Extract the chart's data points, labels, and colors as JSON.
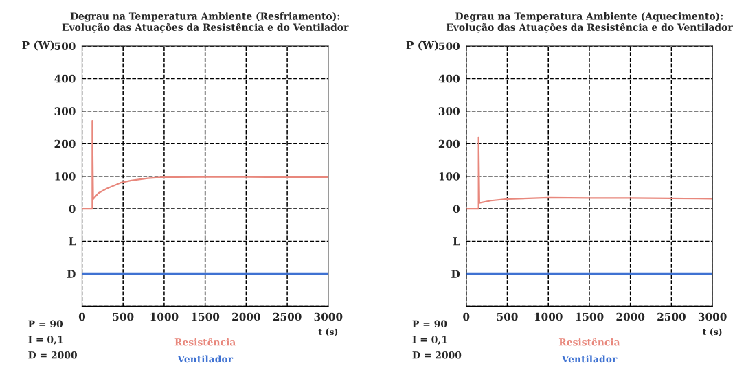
{
  "chart_data": [
    {
      "type": "line",
      "title": "Degrau na Temperatura Ambiente (Resfriamento):\nEvolução das Atuações da Resistência e do Ventilador",
      "xlabel": "t (s)",
      "ylabel": "P (W)",
      "xlim": [
        0,
        3000
      ],
      "xticks": [
        0,
        500,
        1000,
        1500,
        2000,
        2500,
        3000
      ],
      "ylim": [
        -300,
        500
      ],
      "yticks": [
        {
          "value": -300,
          "label": null
        },
        {
          "value": -200,
          "label": "D"
        },
        {
          "value": -100,
          "label": "L"
        },
        0,
        100,
        200,
        300,
        400,
        500
      ],
      "grid": true,
      "legend": "bottom",
      "line_style": "solid",
      "annotations": [
        "P = 90",
        "I = 0,1",
        "D = 2000"
      ],
      "series": [
        {
          "name": "Resistência",
          "color": "#e8877c",
          "x": [
            0,
            125,
            125,
            135,
            200,
            300,
            470,
            600,
            800,
            1000,
            1500,
            2000,
            2500,
            3000
          ],
          "values": [
            0,
            0,
            270,
            30,
            48,
            62,
            80,
            87,
            94,
            97,
            98,
            98,
            97,
            97
          ]
        },
        {
          "name": "Ventilador",
          "color": "#3f72d2",
          "x": [
            0,
            3000
          ],
          "values": [
            -200,
            -200
          ]
        }
      ]
    },
    {
      "type": "line",
      "title": "Degrau na Temperatura Ambiente (Aquecimento):\nEvolução das Atuações da Resistência e do Ventilador",
      "xlabel": "t (s)",
      "ylabel": "P (W)",
      "xlim": [
        0,
        3000
      ],
      "xticks": [
        0,
        500,
        1000,
        1500,
        2000,
        2500,
        3000
      ],
      "ylim": [
        -300,
        500
      ],
      "yticks": [
        {
          "value": -300,
          "label": null
        },
        {
          "value": -200,
          "label": "D"
        },
        {
          "value": -100,
          "label": "L"
        },
        0,
        100,
        200,
        300,
        400,
        500
      ],
      "grid": true,
      "legend": "bottom",
      "line_style": "solid",
      "annotations": [
        "P = 90",
        "I = 0,1",
        "D = 2000"
      ],
      "series": [
        {
          "name": "Resistência",
          "color": "#e8877c",
          "x": [
            0,
            150,
            150,
            160,
            300,
            500,
            1000,
            1500,
            2000,
            2500,
            3000
          ],
          "values": [
            0,
            0,
            220,
            18,
            25,
            30,
            34,
            33,
            33,
            32,
            31
          ]
        },
        {
          "name": "Ventilador",
          "color": "#3f72d2",
          "x": [
            0,
            3000
          ],
          "values": [
            -200,
            -200
          ]
        }
      ]
    }
  ]
}
